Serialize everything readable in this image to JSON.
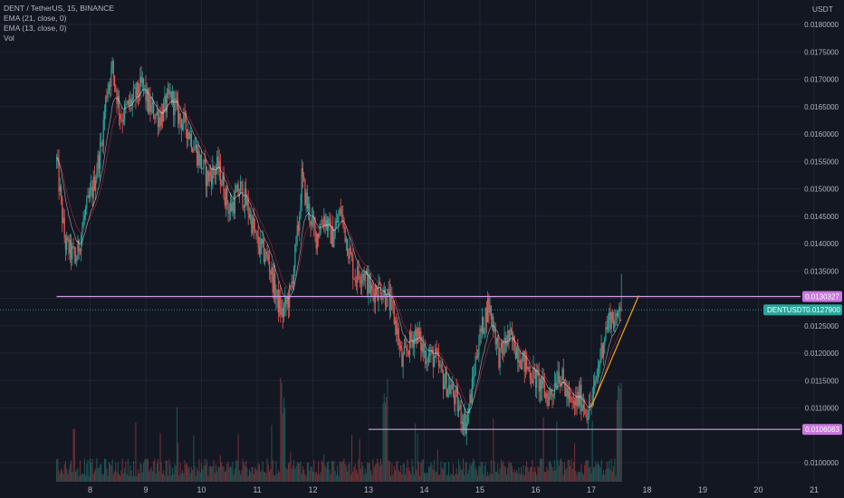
{
  "legend": {
    "symbol_line": "DENT / TetherUS, 15, BINANCE",
    "ema21": "EMA (21, close, 0)",
    "ema13": "EMA (13, close, 0)",
    "vol": "Vol"
  },
  "colors": {
    "background": "#131722",
    "grid": "#1f2433",
    "up": "#26a69a",
    "down": "#ef5350",
    "hline": "#d39ae6",
    "hline_tag": "#c978dd",
    "last_price_tag": "#26a69a",
    "ema21": "#f23645",
    "ema13": "#ffffff",
    "trendline": "#f7a21b",
    "axis_text": "#b2b5be"
  },
  "chart_data": {
    "type": "candlestick",
    "symbol": "DENT / TetherUS",
    "interval": "15",
    "exchange": "BINANCE",
    "currency": "USDT",
    "x_labels": [
      "8",
      "9",
      "10",
      "11",
      "12",
      "13",
      "14",
      "15",
      "16",
      "17",
      "18",
      "19",
      "20",
      "21"
    ],
    "y_ticks": [
      "0.0180000",
      "0.0175000",
      "0.0170000",
      "0.0165000",
      "0.0160000",
      "0.0155000",
      "0.0150000",
      "0.0145000",
      "0.0140000",
      "0.0135000",
      "0.0130000",
      "0.0125000",
      "0.0120000",
      "0.0115000",
      "0.0110000",
      "0.0100000"
    ],
    "ylim": [
      0.00975,
      0.0182
    ],
    "xlim_days": [
      7.4,
      21.9
    ],
    "price_path": [
      [
        7.4,
        0.0155
      ],
      [
        7.55,
        0.014
      ],
      [
        7.75,
        0.0137
      ],
      [
        7.9,
        0.0145
      ],
      [
        8.05,
        0.015
      ],
      [
        8.2,
        0.0158
      ],
      [
        8.3,
        0.0168
      ],
      [
        8.4,
        0.0172
      ],
      [
        8.55,
        0.0163
      ],
      [
        8.75,
        0.0166
      ],
      [
        8.95,
        0.0169
      ],
      [
        9.05,
        0.0165
      ],
      [
        9.25,
        0.0163
      ],
      [
        9.45,
        0.0167
      ],
      [
        9.6,
        0.0163
      ],
      [
        9.75,
        0.0161
      ],
      [
        9.9,
        0.0157
      ],
      [
        10.1,
        0.0152
      ],
      [
        10.3,
        0.0154
      ],
      [
        10.5,
        0.0146
      ],
      [
        10.7,
        0.015
      ],
      [
        10.85,
        0.0146
      ],
      [
        11.0,
        0.014
      ],
      [
        11.2,
        0.0137
      ],
      [
        11.35,
        0.013
      ],
      [
        11.45,
        0.0127
      ],
      [
        11.6,
        0.0131
      ],
      [
        11.75,
        0.0144
      ],
      [
        11.8,
        0.0152
      ],
      [
        11.9,
        0.0147
      ],
      [
        12.05,
        0.0141
      ],
      [
        12.2,
        0.0145
      ],
      [
        12.35,
        0.0141
      ],
      [
        12.5,
        0.0146
      ],
      [
        12.6,
        0.0141
      ],
      [
        12.75,
        0.0134
      ],
      [
        12.9,
        0.0135
      ],
      [
        13.05,
        0.0131
      ],
      [
        13.2,
        0.0132
      ],
      [
        13.35,
        0.013
      ],
      [
        13.5,
        0.0125
      ],
      [
        13.6,
        0.0118
      ],
      [
        13.7,
        0.0121
      ],
      [
        13.85,
        0.0124
      ],
      [
        14.0,
        0.012
      ],
      [
        14.2,
        0.0119
      ],
      [
        14.35,
        0.0115
      ],
      [
        14.5,
        0.0113
      ],
      [
        14.65,
        0.0109
      ],
      [
        14.75,
        0.0107
      ],
      [
        14.85,
        0.0113
      ],
      [
        14.95,
        0.0121
      ],
      [
        15.05,
        0.0125
      ],
      [
        15.15,
        0.0129
      ],
      [
        15.25,
        0.0125
      ],
      [
        15.35,
        0.0119
      ],
      [
        15.5,
        0.0123
      ],
      [
        15.65,
        0.0121
      ],
      [
        15.8,
        0.0118
      ],
      [
        15.95,
        0.0116
      ],
      [
        16.1,
        0.0114
      ],
      [
        16.2,
        0.0112
      ],
      [
        16.3,
        0.0113
      ],
      [
        16.4,
        0.0117
      ],
      [
        16.55,
        0.0113
      ],
      [
        16.65,
        0.011
      ],
      [
        16.8,
        0.0112
      ],
      [
        16.95,
        0.0109
      ],
      [
        17.05,
        0.0113
      ],
      [
        17.15,
        0.0119
      ],
      [
        17.25,
        0.0124
      ],
      [
        17.35,
        0.0127
      ],
      [
        17.45,
        0.0125
      ],
      [
        17.5,
        0.013
      ],
      [
        17.55,
        0.01279
      ]
    ],
    "horizontal_lines": [
      {
        "price": 0.0130327,
        "label": "0.0130327",
        "x_from_day": 7.4
      },
      {
        "price": 0.0106083,
        "label": "0.0106083",
        "x_from_day": 13.0
      }
    ],
    "last_price": {
      "price": 0.01279,
      "label": "DENTUSDT",
      "value_text": "0.0127900"
    },
    "trendline": {
      "from": [
        17.0,
        0.01102
      ],
      "to": [
        17.85,
        0.01305
      ]
    },
    "volume": {
      "visible": true,
      "panel": "bottom-overlay"
    }
  },
  "currency_label": "USDT"
}
